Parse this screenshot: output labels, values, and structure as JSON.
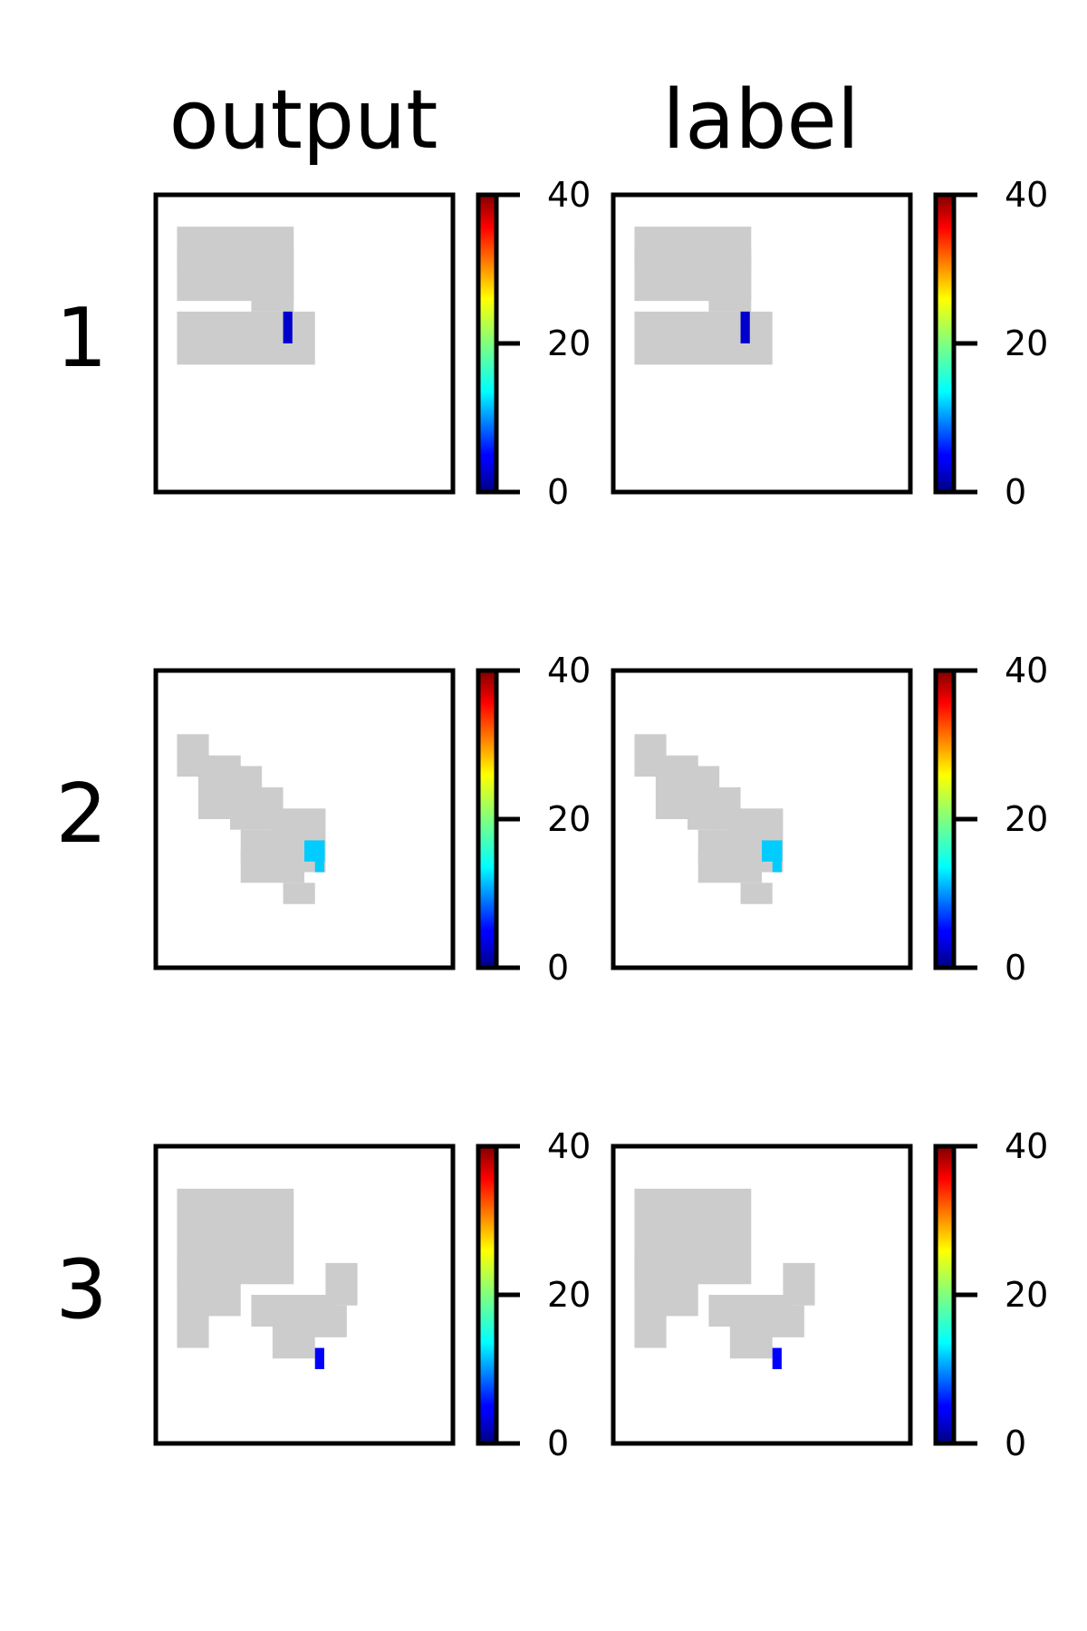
{
  "columns": [
    "output",
    "label"
  ],
  "rows": [
    "1",
    "2",
    "3"
  ],
  "colors": {
    "digit": "#cccccc",
    "colormap": "jet"
  },
  "chart_data": {
    "type": "heatmap",
    "layout": "3 rows x 2 columns of image panels, each with a colorbar",
    "colorbar": {
      "colormap": "jet",
      "range": [
        0,
        40
      ],
      "ticks": [
        0,
        20,
        40
      ]
    },
    "panel_grid": 28,
    "background_value": null,
    "panels": [
      {
        "row": "1",
        "shape": "digit 4",
        "mask_rects": [
          [
            6,
            2,
            3,
            12
          ],
          [
            9,
            2,
            5,
            12
          ],
          [
            6,
            9,
            10,
            12
          ],
          [
            11,
            2,
            15,
            14
          ]
        ],
        "highlight": {
          "value": 3,
          "rects": [
            [
              11,
              12,
              13,
              13
            ]
          ]
        }
      },
      {
        "row": "2",
        "shape": "digit 2 (skewed)",
        "mask_rects": [
          [
            6,
            2,
            9,
            4
          ],
          [
            8,
            4,
            13,
            7
          ],
          [
            9,
            7,
            14,
            9
          ],
          [
            11,
            9,
            14,
            11
          ],
          [
            13,
            11,
            18,
            15
          ],
          [
            15,
            8,
            19,
            13
          ],
          [
            17,
            8,
            17,
            11
          ],
          [
            20,
            12,
            21,
            14
          ]
        ],
        "highlight": {
          "value": 13,
          "rects": [
            [
              17,
              15,
              18,
              16
            ],
            [
              17,
              14,
              16,
              18
            ]
          ]
        }
      },
      {
        "row": "3",
        "shape": "digit 3 (rotated)",
        "mask_rects": [
          [
            10,
            2,
            18,
            4
          ],
          [
            12,
            2,
            4,
            12
          ],
          [
            10,
            4,
            15,
            7
          ],
          [
            14,
            9,
            16,
            16
          ],
          [
            15,
            12,
            17,
            17
          ],
          [
            11,
            16,
            14,
            18
          ],
          [
            16,
            11,
            19,
            14
          ]
        ],
        "highlight": {
          "value": 5,
          "rects": [
            [
              19,
              15,
              20,
              16
            ]
          ]
        }
      }
    ]
  }
}
